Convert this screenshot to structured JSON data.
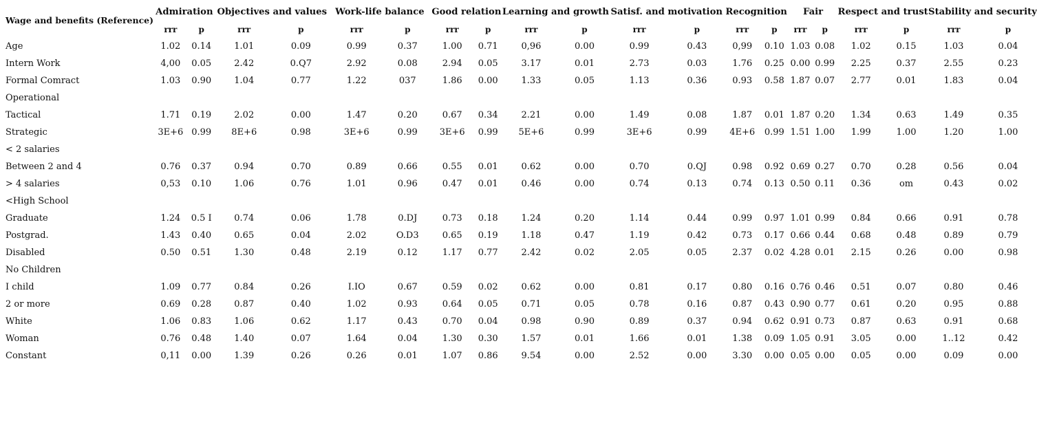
{
  "reference_label": "Wage and benefits (Reference)",
  "groups": [
    "Admiration",
    "Objectives and values",
    "Work-life balance",
    "Good relation",
    "Learning and growth",
    "Satisf. and motivation",
    "Recognition",
    "Fair",
    "Respect and trust",
    "Stability and security"
  ],
  "subheaders": [
    "rrr",
    "p"
  ],
  "rows": [
    {
      "label": "Age",
      "cells": [
        "1.02",
        "0.14",
        "1.01",
        "0.09",
        "0.99",
        "0.37",
        "1.00",
        "0.71",
        "0,96",
        "0.00",
        "0.99",
        "0.43",
        "0,99",
        "0.10",
        "1.03",
        "0.08",
        "1.02",
        "0.15",
        "1.03",
        "0.04"
      ]
    },
    {
      "label": "Intern Work",
      "cells": [
        "4,00",
        "0.05",
        "2.42",
        "0.Q7",
        "2.92",
        "0.08",
        "2.94",
        "0.05",
        "3.17",
        "0.01",
        "2.73",
        "0.03",
        "1.76",
        "0.25",
        "0.00",
        "0.99",
        "2.25",
        "0.37",
        "2.55",
        "0.23"
      ]
    },
    {
      "label": "Formal Comract",
      "cells": [
        "1.03",
        "0.90",
        "1.04",
        "0.77",
        "1.22",
        "037",
        "1.86",
        "0.00",
        "1.33",
        "0.05",
        "1.13",
        "0.36",
        "0.93",
        "0.58",
        "1.87",
        "0.07",
        "2.77",
        "0.01",
        "1.83",
        "0.04"
      ]
    },
    {
      "label": "Operational",
      "cells": [
        "",
        "",
        "",
        "",
        "",
        "",
        "",
        "",
        "",
        "",
        "",
        "",
        "",
        "",
        "",
        "",
        "",
        "",
        "",
        ""
      ]
    },
    {
      "label": "Tactical",
      "cells": [
        "1.71",
        "0.19",
        "2.02",
        "0.00",
        "1.47",
        "0.20",
        "0.67",
        "0.34",
        "2.21",
        "0.00",
        "1.49",
        "0.08",
        "1.87",
        "0.01",
        "1.87",
        "0.20",
        "1.34",
        "0.63",
        "1.49",
        "0.35"
      ]
    },
    {
      "label": "Strategic",
      "cells": [
        "3E+6",
        "0.99",
        "8E+6",
        "0.98",
        "3E+6",
        "0.99",
        "3E+6",
        "0.99",
        "5E+6",
        "0.99",
        "3E+6",
        "0.99",
        "4E+6",
        "0.99",
        "1.51",
        "1.00",
        "1.99",
        "1.00",
        "1.20",
        "1.00"
      ]
    },
    {
      "label": "< 2 salaries",
      "cells": [
        "",
        "",
        "",
        "",
        "",
        "",
        "",
        "",
        "",
        "",
        "",
        "",
        "",
        "",
        "",
        "",
        "",
        "",
        "",
        ""
      ]
    },
    {
      "label": "Between 2 and 4",
      "cells": [
        "0.76",
        "0.37",
        "0.94",
        "0.70",
        "0.89",
        "0.66",
        "0.55",
        "0.01",
        "0.62",
        "0.00",
        "0.70",
        "0.QJ",
        "0.98",
        "0.92",
        "0.69",
        "0.27",
        "0.70",
        "0.28",
        "0.56",
        "0.04"
      ]
    },
    {
      "label": "> 4 salaries",
      "cells": [
        "0,53",
        "0.10",
        "1.06",
        "0.76",
        "1.01",
        "0.96",
        "0.47",
        "0.01",
        "0.46",
        "0.00",
        "0.74",
        "0.13",
        "0.74",
        "0.13",
        "0.50",
        "0.11",
        "0.36",
        "om",
        "0.43",
        "0.02"
      ]
    },
    {
      "label": "<High School",
      "cells": [
        "",
        "",
        "",
        "",
        "",
        "",
        "",
        "",
        "",
        "",
        "",
        "",
        "",
        "",
        "",
        "",
        "",
        "",
        "",
        ""
      ]
    },
    {
      "label": "Graduate",
      "cells": [
        "1.24",
        "0.5 I",
        "0.74",
        "0.06",
        "1.78",
        "0.DJ",
        "0.73",
        "0.18",
        "1.24",
        "0.20",
        "1.14",
        "0.44",
        "0.99",
        "0.97",
        "1.01",
        "0.99",
        "0.84",
        "0.66",
        "0.91",
        "0.78"
      ]
    },
    {
      "label": "Postgrad.",
      "cells": [
        "1.43",
        "0.40",
        "0.65",
        "0.04",
        "2.02",
        "O.D3",
        "0.65",
        "0.19",
        "1.18",
        "0.47",
        "1.19",
        "0.42",
        "0.73",
        "0.17",
        "0.66",
        "0.44",
        "0.68",
        "0.48",
        "0.89",
        "0.79"
      ]
    },
    {
      "label": "Disabled",
      "cells": [
        "0.50",
        "0.51",
        "1.30",
        "0.48",
        "2.19",
        "0.12",
        "1.17",
        "0.77",
        "2.42",
        "0.02",
        "2.05",
        "0.05",
        "2.37",
        "0.02",
        "4.28",
        "0.01",
        "2.15",
        "0.26",
        "0.00",
        "0.98"
      ]
    },
    {
      "label": "No Children",
      "cells": [
        "",
        "",
        "",
        "",
        "",
        "",
        "",
        "",
        "",
        "",
        "",
        "",
        "",
        "",
        "",
        "",
        "",
        "",
        "",
        ""
      ]
    },
    {
      "label": "I child",
      "cells": [
        "1.09",
        "0.77",
        "0.84",
        "0.26",
        "I.IO",
        "0.67",
        "0.59",
        "0.02",
        "0.62",
        "0.00",
        "0.81",
        "0.17",
        "0.80",
        "0.16",
        "0.76",
        "0.46",
        "0.51",
        "0.07",
        "0.80",
        "0.46"
      ]
    },
    {
      "label": "2 or more",
      "cells": [
        "0.69",
        "0.28",
        "0.87",
        "0.40",
        "1.02",
        "0.93",
        "0.64",
        "0.05",
        "0.71",
        "0.05",
        "0.78",
        "0.16",
        "0.87",
        "0.43",
        "0.90",
        "0.77",
        "0.61",
        "0.20",
        "0.95",
        "0.88"
      ]
    },
    {
      "label": "White",
      "cells": [
        "1.06",
        "0.83",
        "1.06",
        "0.62",
        "1.17",
        "0.43",
        "0.70",
        "0.04",
        "0.98",
        "0.90",
        "0.89",
        "0.37",
        "0.94",
        "0.62",
        "0.91",
        "0.73",
        "0.87",
        "0.63",
        "0.91",
        "0.68"
      ]
    },
    {
      "label": "Woman",
      "cells": [
        "0.76",
        "0.48",
        "1.40",
        "0.07",
        "1.64",
        "0.04",
        "1.30",
        "0.30",
        "1.57",
        "0.01",
        "1.66",
        "0.01",
        "1.38",
        "0.09",
        "1.05",
        "0.91",
        "3.05",
        "0.00",
        "1..12",
        "0.42"
      ]
    },
    {
      "label": "Constant",
      "cells": [
        "0,11",
        "0.00",
        "1.39",
        "0.26",
        "0.26",
        "0.01",
        "1.07",
        "0.86",
        "9.54",
        "0.00",
        "2.52",
        "0.00",
        "3.30",
        "0.00",
        "0.05",
        "0.00",
        "0.05",
        "0.00",
        "0.09",
        "0.00"
      ]
    }
  ]
}
